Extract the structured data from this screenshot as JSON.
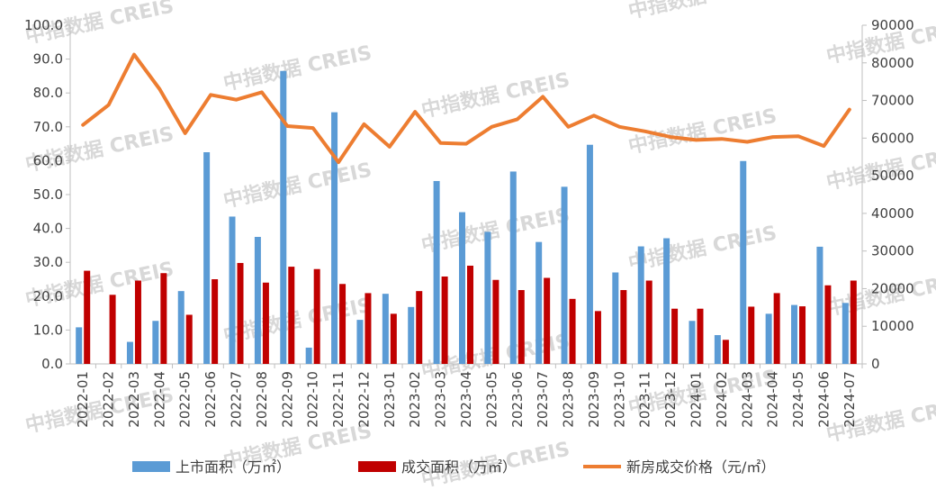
{
  "chart_data": {
    "type": "bar",
    "categories": [
      "2022-01",
      "2022-02",
      "2022-03",
      "2022-04",
      "2022-05",
      "2022-06",
      "2022-07",
      "2022-08",
      "2022-09",
      "2022-10",
      "2022-11",
      "2022-12",
      "2023-01",
      "2023-02",
      "2023-03",
      "2023-04",
      "2023-05",
      "2023-06",
      "2023-07",
      "2023-08",
      "2023-09",
      "2023-10",
      "2023-11",
      "2023-12",
      "2024-01",
      "2024-02",
      "2024-03",
      "2024-04",
      "2024-05",
      "2024-06",
      "2024-07"
    ],
    "series": [
      {
        "name": "上市面积（万㎡）",
        "type": "bar",
        "axis": "left",
        "color": "#5b9bd5",
        "values": [
          10.8,
          0,
          6.5,
          12.7,
          21.5,
          62.5,
          43.5,
          37.5,
          86.5,
          4.8,
          74.3,
          13.0,
          20.7,
          16.8,
          54.0,
          44.8,
          39.0,
          56.8,
          36.0,
          52.3,
          64.7,
          27.0,
          34.7,
          37.1,
          12.7,
          8.5,
          59.9,
          14.8,
          17.4,
          34.6,
          18.0
        ]
      },
      {
        "name": "成交面积（万㎡）",
        "type": "bar",
        "axis": "left",
        "color": "#c00000",
        "values": [
          27.5,
          20.4,
          24.6,
          26.8,
          14.5,
          25.0,
          29.8,
          24.0,
          28.7,
          28.0,
          23.6,
          20.9,
          14.8,
          21.5,
          25.8,
          29.0,
          24.8,
          21.8,
          25.4,
          19.2,
          15.6,
          21.8,
          24.6,
          16.3,
          16.3,
          7.1,
          16.9,
          20.9,
          17.0,
          23.2,
          24.6
        ]
      },
      {
        "name": "新房成交价格（元/㎡）",
        "type": "line",
        "axis": "right",
        "color": "#ed7d31",
        "values": [
          63500,
          68800,
          82200,
          73000,
          61300,
          71500,
          70200,
          72200,
          63200,
          62700,
          53600,
          63700,
          57700,
          67000,
          58700,
          58500,
          63000,
          65000,
          71000,
          63000,
          66000,
          63000,
          61800,
          60300,
          59500,
          59800,
          59000,
          60300,
          60500,
          57900,
          67600
        ]
      }
    ],
    "y_left": {
      "min": 0,
      "max": 100,
      "step": 10,
      "tick_labels": [
        "0.0",
        "10.0",
        "20.0",
        "30.0",
        "40.0",
        "50.0",
        "60.0",
        "70.0",
        "80.0",
        "90.0",
        "100.0"
      ]
    },
    "y_right": {
      "min": 0,
      "max": 90000,
      "step": 10000,
      "tick_labels": [
        "0",
        "10000",
        "20000",
        "30000",
        "40000",
        "50000",
        "60000",
        "70000",
        "80000",
        "90000"
      ]
    },
    "title": "",
    "xlabel": "",
    "grid": false,
    "legend_position": "bottom"
  },
  "watermark": "中指数据 CREIS"
}
